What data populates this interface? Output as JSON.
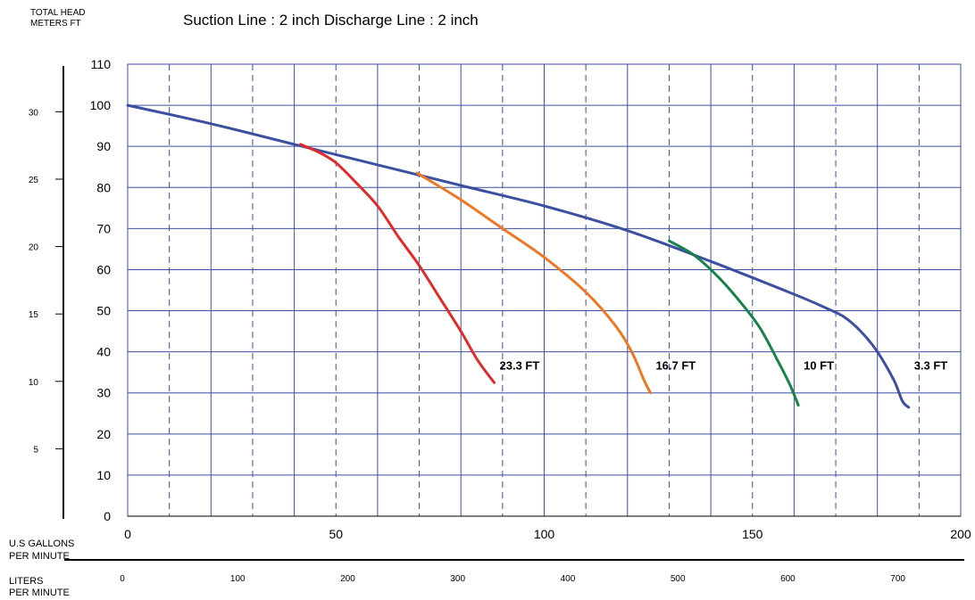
{
  "chart_data": {
    "type": "line",
    "title": "Suction  Line : 2 inch    Discharge Line : 2 inch",
    "left_axis_title": [
      "TOTAL HEAD",
      "METERS   FT"
    ],
    "bottom_axis_title_usgpm": [
      "U.S GALLONS",
      "PER MINUTE"
    ],
    "bottom_axis_title_lpm": [
      "LITERS",
      "PER MINUTE"
    ],
    "x_usgpm": {
      "range": [
        0,
        200
      ],
      "ticks": [
        "0",
        "50",
        "100",
        "150",
        "200"
      ],
      "tick_values": [
        0,
        50,
        100,
        150,
        200
      ]
    },
    "x_lpm": {
      "range": [
        0,
        757
      ],
      "ticks": [
        "0",
        "100",
        "200",
        "300",
        "400",
        "500",
        "600",
        "700"
      ],
      "tick_values": [
        0,
        100,
        200,
        300,
        400,
        500,
        600,
        700
      ]
    },
    "y_ft": {
      "range": [
        0,
        110
      ],
      "ticks": [
        "0",
        "10",
        "20",
        "30",
        "40",
        "50",
        "60",
        "70",
        "80",
        "90",
        "100",
        "110"
      ],
      "tick_values": [
        0,
        10,
        20,
        30,
        40,
        50,
        60,
        70,
        80,
        90,
        100,
        110
      ]
    },
    "y_m": {
      "range": [
        0,
        33.53
      ],
      "ticks": [
        "5",
        "10",
        "15",
        "20",
        "25",
        "30"
      ],
      "tick_values": [
        5,
        10,
        15,
        20,
        25,
        30
      ]
    },
    "grid": true,
    "series": [
      {
        "name": "3.3 FT",
        "color": "#3d4fa0",
        "points": [
          [
            0,
            100
          ],
          [
            20,
            95.5
          ],
          [
            40,
            90.5
          ],
          [
            60,
            85.5
          ],
          [
            80,
            80.5
          ],
          [
            100,
            75.5
          ],
          [
            120,
            69.5
          ],
          [
            140,
            62
          ],
          [
            160,
            54
          ],
          [
            168,
            50.5
          ],
          [
            172,
            48.5
          ],
          [
            176,
            45
          ],
          [
            180,
            40
          ],
          [
            184,
            33
          ],
          [
            186,
            28
          ],
          [
            187.5,
            26.5
          ]
        ]
      },
      {
        "name": "23.3 FT",
        "color": "#e32a2a",
        "points": [
          [
            41.5,
            90.5
          ],
          [
            46,
            88.5
          ],
          [
            50,
            86
          ],
          [
            55,
            81
          ],
          [
            60,
            75.5
          ],
          [
            65,
            68
          ],
          [
            70,
            61
          ],
          [
            75,
            53
          ],
          [
            80,
            45
          ],
          [
            84,
            38
          ],
          [
            88,
            32.5
          ]
        ]
      },
      {
        "name": "16.7 FT",
        "color": "#ee7724",
        "points": [
          [
            69.5,
            83.5
          ],
          [
            80,
            77
          ],
          [
            90,
            70
          ],
          [
            100,
            63
          ],
          [
            110,
            54.5
          ],
          [
            117,
            46.5
          ],
          [
            121,
            40
          ],
          [
            124,
            33
          ],
          [
            125.5,
            30
          ]
        ]
      },
      {
        "name": "10 FT",
        "color": "#168349",
        "points": [
          [
            130,
            67
          ],
          [
            136,
            63.5
          ],
          [
            142,
            58
          ],
          [
            148,
            51
          ],
          [
            152,
            45.5
          ],
          [
            156,
            38
          ],
          [
            159,
            32
          ],
          [
            161,
            27
          ]
        ]
      }
    ]
  }
}
